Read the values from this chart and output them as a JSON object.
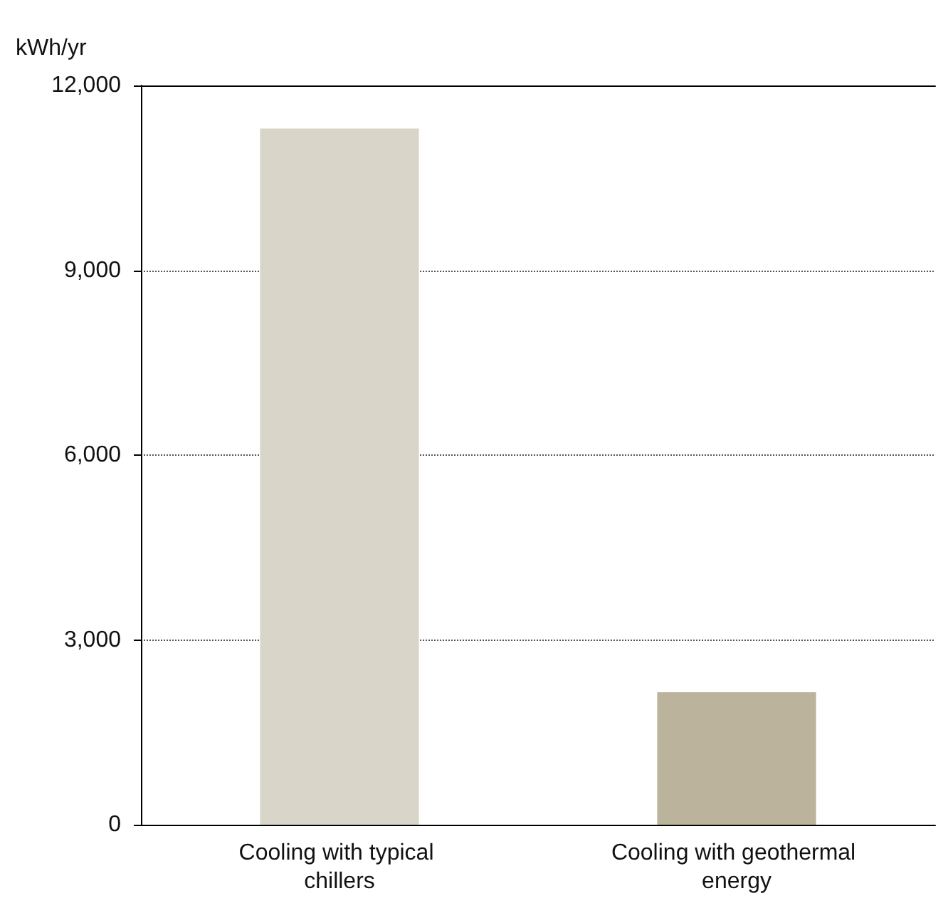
{
  "chart_data": {
    "type": "bar",
    "ylabel": "kWh/yr",
    "categories": [
      "Cooling with typical chillers",
      "Cooling with geothermal energy"
    ],
    "values": [
      11300,
      2150
    ],
    "colors": [
      "#d9d5c8",
      "#bbb39b"
    ],
    "ylim": [
      0,
      12000
    ],
    "yticks": [
      0,
      {
        "value": 3000,
        "label": "3,000"
      },
      {
        "value": 6000,
        "label": "6,000"
      },
      {
        "value": 9000,
        "label": "9,000"
      },
      {
        "value": 12000,
        "label": "12,000"
      }
    ],
    "grid": "y"
  }
}
